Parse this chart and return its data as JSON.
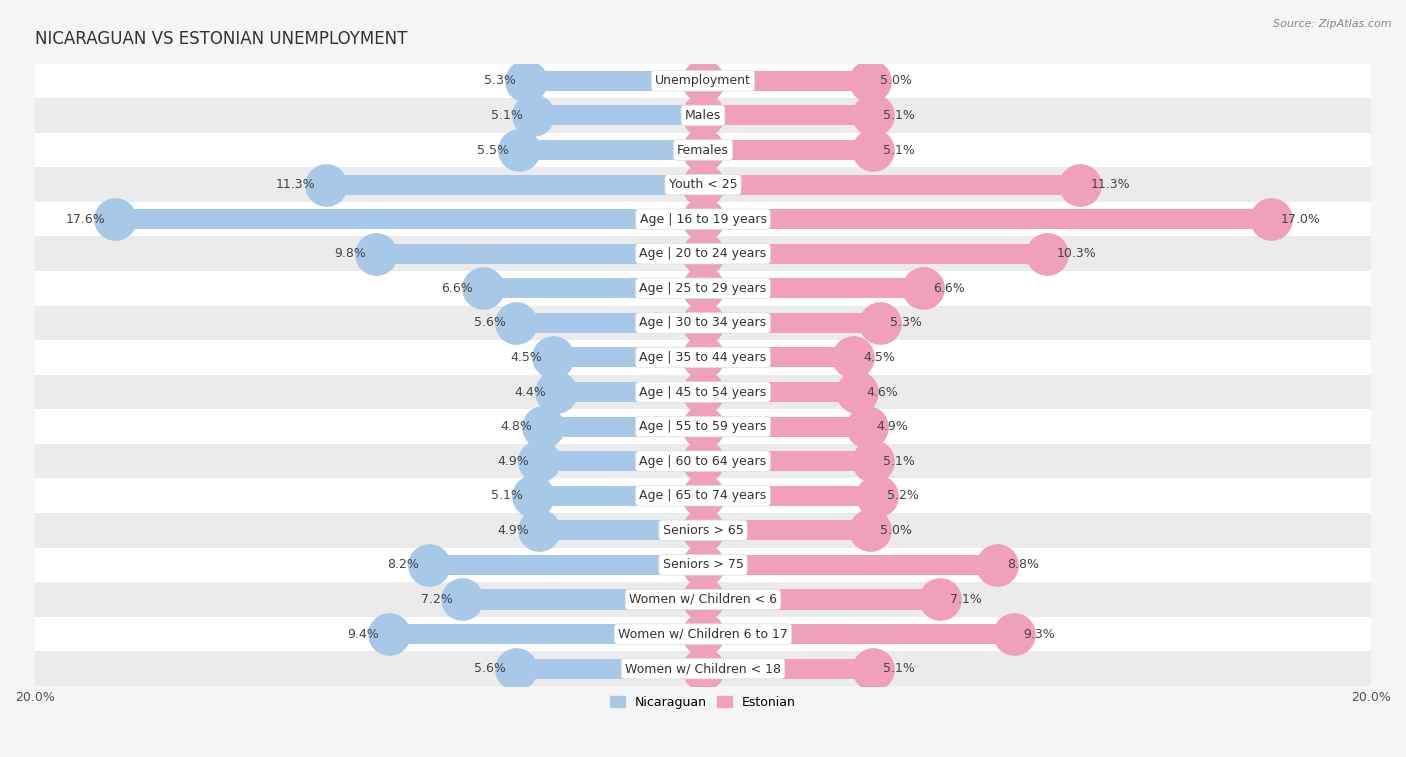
{
  "title": "NICARAGUAN VS ESTONIAN UNEMPLOYMENT",
  "source": "Source: ZipAtlas.com",
  "categories": [
    "Unemployment",
    "Males",
    "Females",
    "Youth < 25",
    "Age | 16 to 19 years",
    "Age | 20 to 24 years",
    "Age | 25 to 29 years",
    "Age | 30 to 34 years",
    "Age | 35 to 44 years",
    "Age | 45 to 54 years",
    "Age | 55 to 59 years",
    "Age | 60 to 64 years",
    "Age | 65 to 74 years",
    "Seniors > 65",
    "Seniors > 75",
    "Women w/ Children < 6",
    "Women w/ Children 6 to 17",
    "Women w/ Children < 18"
  ],
  "nicaraguan": [
    5.3,
    5.1,
    5.5,
    11.3,
    17.6,
    9.8,
    6.6,
    5.6,
    4.5,
    4.4,
    4.8,
    4.9,
    5.1,
    4.9,
    8.2,
    7.2,
    9.4,
    5.6
  ],
  "estonian": [
    5.0,
    5.1,
    5.1,
    11.3,
    17.0,
    10.3,
    6.6,
    5.3,
    4.5,
    4.6,
    4.9,
    5.1,
    5.2,
    5.0,
    8.8,
    7.1,
    9.3,
    5.1
  ],
  "nicaraguan_color": "#a8c8e8",
  "estonian_color": "#f0a0b8",
  "bar_height": 0.58,
  "xlim": 20.0,
  "row_colors": [
    "#ffffff",
    "#ebebeb"
  ],
  "legend_nicaraguan": "Nicaraguan",
  "legend_estonian": "Estonian",
  "title_fontsize": 12,
  "label_fontsize": 9,
  "category_fontsize": 9,
  "fig_bg": "#f5f5f5"
}
